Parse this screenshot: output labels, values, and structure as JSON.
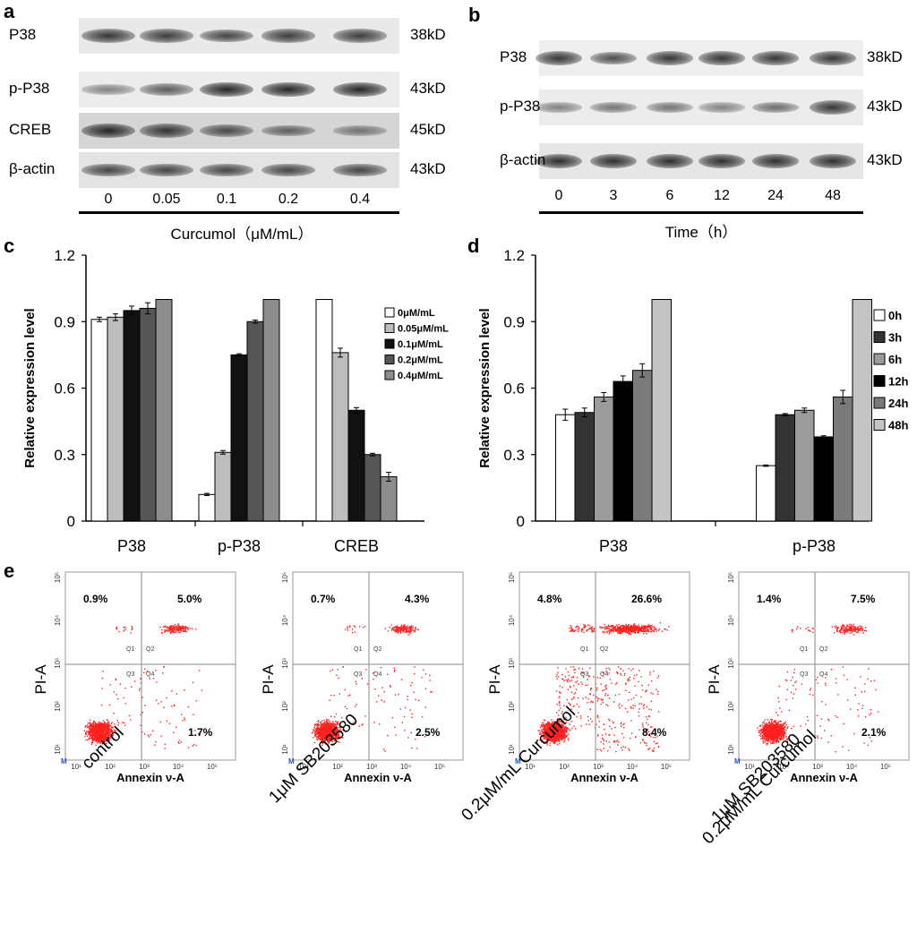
{
  "panels": {
    "a": {
      "letter": "a",
      "rows": [
        {
          "label": "P38",
          "mw": "38kD",
          "intensity": [
            0.85,
            0.8,
            0.75,
            0.8,
            0.8
          ],
          "bg": "#e9e9e9"
        },
        {
          "label": "p-P38",
          "mw": "43kD",
          "intensity": [
            0.35,
            0.6,
            0.95,
            0.95,
            0.95
          ],
          "bg": "#ececec"
        },
        {
          "label": "CREB",
          "mw": "45kD",
          "intensity": [
            0.95,
            0.85,
            0.7,
            0.55,
            0.4
          ],
          "bg": "#d5d5d5"
        },
        {
          "label": "β-actin",
          "mw": "43kD",
          "intensity": [
            0.75,
            0.75,
            0.75,
            0.75,
            0.75
          ],
          "bg": "#e3e3e3"
        }
      ],
      "lanes": [
        "0",
        "0.05",
        "0.1",
        "0.2",
        "0.4"
      ],
      "xtitle": "Curcumol（μM/mL）"
    },
    "b": {
      "letter": "b",
      "rows": [
        {
          "label": "P38",
          "mw": "38kD",
          "intensity": [
            0.85,
            0.7,
            0.85,
            0.85,
            0.85,
            0.85
          ],
          "bg": "#eeeeee"
        },
        {
          "label": "p-P38",
          "mw": "43kD",
          "intensity": [
            0.35,
            0.45,
            0.45,
            0.35,
            0.5,
            0.85
          ],
          "bg": "#ececec"
        },
        {
          "label": "β-actin",
          "mw": "43kD",
          "intensity": [
            0.9,
            0.9,
            0.9,
            0.9,
            0.9,
            0.9
          ],
          "bg": "#e6e6e6"
        }
      ],
      "lanes": [
        "0",
        "3",
        "6",
        "12",
        "24",
        "48"
      ],
      "xtitle": "Time（h）"
    },
    "e": {
      "letter": "e",
      "plots": [
        {
          "q1": "0.9%",
          "q2": "5.0%",
          "q4": "1.7%",
          "treatment": "control",
          "treatment2": ""
        },
        {
          "q1": "0.7%",
          "q2": "4.3%",
          "q4": "2.5%",
          "treatment": "1μM  SB203580",
          "treatment2": ""
        },
        {
          "q1": "4.8%",
          "q2": "26.6%",
          "q4": "8.4%",
          "treatment": "0.2μM/mL Curcumol",
          "treatment2": ""
        },
        {
          "q1": "1.4%",
          "q2": "7.5%",
          "q4": "2.1%",
          "treatment": "1μM  SB203580",
          "treatment2": "0.2μM/mL Curcumol"
        }
      ],
      "ylabel": "PI-A",
      "xlabel": "Annexin ν-A",
      "quadrants": [
        "Q1",
        "Q2",
        "Q3",
        "Q4"
      ],
      "tick_labels": [
        "10¹",
        "10²",
        "10³",
        "10⁴",
        "10⁵"
      ],
      "m_marker": "M"
    }
  },
  "chart_data": [
    {
      "panel": "c",
      "type": "bar",
      "ylabel": "Relative expression level",
      "ylim": [
        0,
        1.2
      ],
      "yticks": [
        "0",
        "0.3",
        "0.6",
        "0.9",
        "1.2"
      ],
      "categories": [
        "P38",
        "p-P38",
        "CREB"
      ],
      "legend_position": "right",
      "series": [
        {
          "name": "0μM/mL",
          "color": "#ffffff",
          "values": [
            0.91,
            0.12,
            1.0
          ],
          "errors": [
            0.01,
            0.005,
            0.0
          ]
        },
        {
          "name": "0.05μM/mL",
          "color": "#bdbdbd",
          "values": [
            0.92,
            0.31,
            0.76
          ],
          "errors": [
            0.015,
            0.008,
            0.02
          ]
        },
        {
          "name": "0.1μM/mL",
          "color": "#111111",
          "values": [
            0.95,
            0.75,
            0.5
          ],
          "errors": [
            0.02,
            0.005,
            0.012
          ]
        },
        {
          "name": "0.2μM/mL",
          "color": "#555555",
          "values": [
            0.96,
            0.9,
            0.3
          ],
          "errors": [
            0.025,
            0.007,
            0.006
          ]
        },
        {
          "name": "0.4μM/mL",
          "color": "#8c8c8c",
          "values": [
            1.0,
            1.0,
            0.2
          ],
          "errors": [
            0.0,
            0.0,
            0.02
          ]
        }
      ]
    },
    {
      "panel": "d",
      "type": "bar",
      "ylabel": "Relative expression level",
      "ylim": [
        0,
        1.2
      ],
      "yticks": [
        "0",
        "0.3",
        "0.6",
        "0.9",
        "1.2"
      ],
      "categories": [
        "P38",
        "p-P38"
      ],
      "legend_position": "right",
      "series": [
        {
          "name": "0h",
          "color": "#ffffff",
          "values": [
            0.48,
            0.25
          ],
          "errors": [
            0.025,
            0.003
          ]
        },
        {
          "name": "3h",
          "color": "#333333",
          "values": [
            0.49,
            0.48
          ],
          "errors": [
            0.02,
            0.005
          ]
        },
        {
          "name": "6h",
          "color": "#9b9b9b",
          "values": [
            0.56,
            0.5
          ],
          "errors": [
            0.02,
            0.01
          ]
        },
        {
          "name": "12h",
          "color": "#000000",
          "values": [
            0.63,
            0.38
          ],
          "errors": [
            0.025,
            0.005
          ]
        },
        {
          "name": "24h",
          "color": "#7a7a7a",
          "values": [
            0.68,
            0.56
          ],
          "errors": [
            0.03,
            0.03
          ]
        },
        {
          "name": "48h",
          "color": "#c4c4c4",
          "values": [
            1.0,
            1.0
          ],
          "errors": [
            0.0,
            0.0
          ]
        }
      ]
    }
  ]
}
